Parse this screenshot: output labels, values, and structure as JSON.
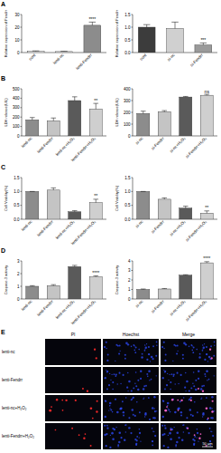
{
  "panel_labels": [
    "A",
    "B",
    "C",
    "D",
    "E"
  ],
  "chart_data": [
    {
      "type": "bar",
      "y_label": "Relative expression of Fendrr",
      "categories": [
        "cont",
        "lenti-nc",
        "lenti-Fendrr"
      ],
      "values": [
        1,
        0.8,
        21.5
      ],
      "errors": [
        0.3,
        0.2,
        2.5
      ],
      "significance": [
        null,
        null,
        "****"
      ],
      "colors": [
        "#e6e6e6",
        "#e6e6e6",
        "#8c8c8c"
      ],
      "ylim": [
        0,
        30
      ],
      "yticks": [
        0,
        10,
        20,
        30
      ]
    },
    {
      "type": "bar",
      "y_label": "Relative expression of Fendrr",
      "categories": [
        "cont",
        "si-nc",
        "si-Fendrr"
      ],
      "values": [
        1.0,
        0.95,
        0.3
      ],
      "errors": [
        0.1,
        0.25,
        0.08
      ],
      "significance": [
        null,
        null,
        "***"
      ],
      "colors": [
        "#3c3c3c",
        "#d0d0d0",
        "#9a9a9a"
      ],
      "ylim": [
        0,
        1.5
      ],
      "yticks": [
        {
          "value": 0,
          "label": "0.0"
        },
        0.5,
        {
          "value": 1,
          "label": "1.0"
        },
        1.5
      ]
    },
    {
      "type": "bar",
      "y_label": "LDH release(U/L)",
      "categories": [
        "lenti-nc",
        "lenti-Fendrr",
        "lenti-nc+H₂O₂",
        "lenti-Fendrr+H₂O₂"
      ],
      "values": [
        170,
        160,
        375,
        285
      ],
      "errors": [
        25,
        30,
        40,
        60
      ],
      "significance": [
        null,
        null,
        null,
        "**"
      ],
      "colors": [
        "#8c8c8c",
        "#c4c4c4",
        "#5a5a5a",
        "#cfcfcf"
      ],
      "ylim": [
        0,
        500
      ],
      "yticks": [
        0,
        100,
        200,
        300,
        400,
        500
      ]
    },
    {
      "type": "bar",
      "y_label": "LDH release(U/L)",
      "categories": [
        "si-nc",
        "si-Fendrr",
        "si-nc+H₂O₂",
        "si-Fendrr+H₂O₂"
      ],
      "values": [
        190,
        205,
        330,
        345
      ],
      "errors": [
        20,
        10,
        5,
        8
      ],
      "significance": [
        null,
        null,
        null,
        "ns"
      ],
      "colors": [
        "#8c8c8c",
        "#c4c4c4",
        "#5a5a5a",
        "#cfcfcf"
      ],
      "ylim": [
        0,
        400
      ],
      "yticks": [
        0,
        100,
        200,
        300,
        400
      ]
    },
    {
      "type": "bar",
      "y_label": "Cell Viability(%)",
      "categories": [
        "lenti-nc",
        "lenti-Fendrr",
        "lenti-nc+H₂O₂",
        "lenti-Fendrr+H₂O₂"
      ],
      "values": [
        1.0,
        1.05,
        0.27,
        0.6
      ],
      "errors": [
        0,
        0.08,
        0.04,
        0.12
      ],
      "significance": [
        null,
        null,
        null,
        "**"
      ],
      "colors": [
        "#8c8c8c",
        "#c4c4c4",
        "#5a5a5a",
        "#cfcfcf"
      ],
      "ylim": [
        0,
        1.5
      ],
      "yticks": [
        {
          "value": 0,
          "label": "0.0"
        },
        0.5,
        {
          "value": 1,
          "label": "1.0"
        },
        1.5
      ]
    },
    {
      "type": "bar",
      "y_label": "Cell Viability(%)",
      "categories": [
        "si-nc",
        "si-Fendrr",
        "si-nc+H₂O₂",
        "si-Fendrr+H₂O₂"
      ],
      "values": [
        1.0,
        0.72,
        0.4,
        0.22
      ],
      "errors": [
        0,
        0.05,
        0.07,
        0.08
      ],
      "significance": [
        null,
        null,
        null,
        "**"
      ],
      "colors": [
        "#8c8c8c",
        "#c4c4c4",
        "#5a5a5a",
        "#cfcfcf"
      ],
      "ylim": [
        0,
        1.5
      ],
      "yticks": [
        {
          "value": 0,
          "label": "0.0"
        },
        0.5,
        {
          "value": 1,
          "label": "1.0"
        },
        1.5
      ]
    },
    {
      "type": "bar",
      "y_label": "Caspase-3 activity",
      "categories": [
        "lenti-nc",
        "lenti-Fendrr",
        "lenti-nc+H₂O₂",
        "lenti-Fendrr+H₂O₂"
      ],
      "values": [
        1.0,
        1.05,
        2.55,
        1.75
      ],
      "errors": [
        0.05,
        0.08,
        0.1,
        0.08
      ],
      "significance": [
        null,
        null,
        null,
        "****"
      ],
      "colors": [
        "#8c8c8c",
        "#c4c4c4",
        "#5a5a5a",
        "#cfcfcf"
      ],
      "ylim": [
        0,
        3
      ],
      "yticks": [
        0,
        1,
        2,
        3
      ]
    },
    {
      "type": "bar",
      "y_label": "Caspase-3 activity",
      "categories": [
        "si-nc",
        "si-Fendrr",
        "si-nc+H₂O₂",
        "si-Fendrr+H₂O₂"
      ],
      "values": [
        1.0,
        1.05,
        2.5,
        3.8
      ],
      "errors": [
        0.05,
        0.05,
        0.05,
        0.12
      ],
      "significance": [
        null,
        null,
        null,
        "****"
      ],
      "colors": [
        "#8c8c8c",
        "#c4c4c4",
        "#5a5a5a",
        "#cfcfcf"
      ],
      "ylim": [
        0,
        4
      ],
      "yticks": [
        0,
        1,
        2,
        3,
        4
      ]
    }
  ],
  "image_panel": {
    "columns": [
      "PI",
      "Hoechst",
      "Merge"
    ],
    "rows": [
      "lenti-nc",
      "lenti-Fendrr",
      "lenti-nc+H₂O₂",
      "lenti-Fendrr+H₂O₂"
    ],
    "scale_bar": "50 μm"
  }
}
